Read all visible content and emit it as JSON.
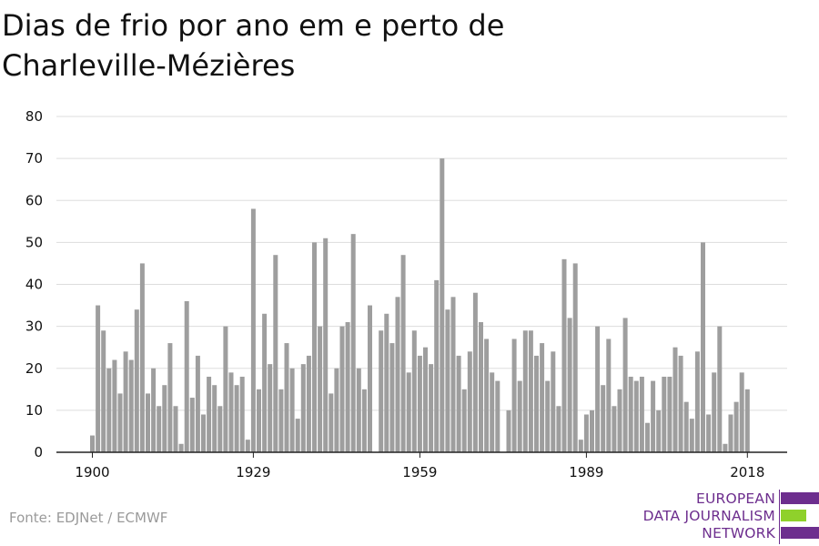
{
  "title": "Dias de frio por ano em e perto de Charleville-Mézières",
  "source": "Fonte: EDJNet / ECMWF",
  "logo": {
    "line1": "EUROPEAN",
    "line2": "DATA JOURNALISM",
    "line3": "NETWORK",
    "purple": "#6d2e8e",
    "green": "#8fd12b"
  },
  "colors": {
    "bar": "#9e9e9e",
    "grid": "#dddddd",
    "axis": "#222222"
  },
  "chart_data": {
    "type": "bar",
    "title": "Dias de frio por ano em e perto de Charleville-Mézières",
    "xlabel": "",
    "ylabel": "",
    "ylim": [
      0,
      80
    ],
    "yticks": [
      0,
      10,
      20,
      30,
      40,
      50,
      60,
      70,
      80
    ],
    "xticks": [
      1900,
      1929,
      1959,
      1989,
      2018
    ],
    "grid": true,
    "x": [
      1900,
      1901,
      1902,
      1903,
      1904,
      1905,
      1906,
      1907,
      1908,
      1909,
      1910,
      1911,
      1912,
      1913,
      1914,
      1915,
      1916,
      1917,
      1918,
      1919,
      1920,
      1921,
      1922,
      1923,
      1924,
      1925,
      1926,
      1927,
      1928,
      1929,
      1930,
      1931,
      1932,
      1933,
      1934,
      1935,
      1936,
      1937,
      1938,
      1939,
      1940,
      1941,
      1942,
      1943,
      1944,
      1945,
      1946,
      1947,
      1948,
      1949,
      1950,
      1951,
      1952,
      1953,
      1954,
      1955,
      1956,
      1957,
      1958,
      1959,
      1960,
      1961,
      1962,
      1963,
      1964,
      1965,
      1966,
      1967,
      1968,
      1969,
      1970,
      1971,
      1972,
      1973,
      1974,
      1975,
      1976,
      1977,
      1978,
      1979,
      1980,
      1981,
      1982,
      1983,
      1984,
      1985,
      1986,
      1987,
      1988,
      1989,
      1990,
      1991,
      1992,
      1993,
      1994,
      1995,
      1996,
      1997,
      1998,
      1999,
      2000,
      2001,
      2002,
      2003,
      2004,
      2005,
      2006,
      2007,
      2008,
      2009,
      2010,
      2011,
      2012,
      2013,
      2014,
      2015,
      2016,
      2017,
      2018
    ],
    "values": [
      4,
      35,
      29,
      20,
      22,
      14,
      24,
      22,
      34,
      45,
      14,
      20,
      11,
      16,
      26,
      11,
      2,
      36,
      13,
      23,
      9,
      18,
      16,
      11,
      30,
      19,
      16,
      18,
      3,
      58,
      15,
      33,
      21,
      47,
      15,
      26,
      20,
      8,
      21,
      23,
      50,
      30,
      51,
      14,
      20,
      30,
      31,
      52,
      20,
      15,
      35,
      0,
      29,
      33,
      26,
      37,
      47,
      19,
      29,
      23,
      25,
      21,
      41,
      70,
      34,
      37,
      23,
      15,
      24,
      38,
      31,
      27,
      19,
      17,
      0,
      10,
      27,
      17,
      29,
      29,
      23,
      26,
      17,
      24,
      11,
      46,
      32,
      45,
      3,
      9,
      10,
      30,
      16,
      27,
      11,
      15,
      32,
      18,
      17,
      18,
      7,
      17,
      10,
      18,
      18,
      25,
      23,
      12,
      8,
      24,
      50,
      9,
      19,
      30,
      2,
      9,
      12,
      19,
      15
    ]
  }
}
